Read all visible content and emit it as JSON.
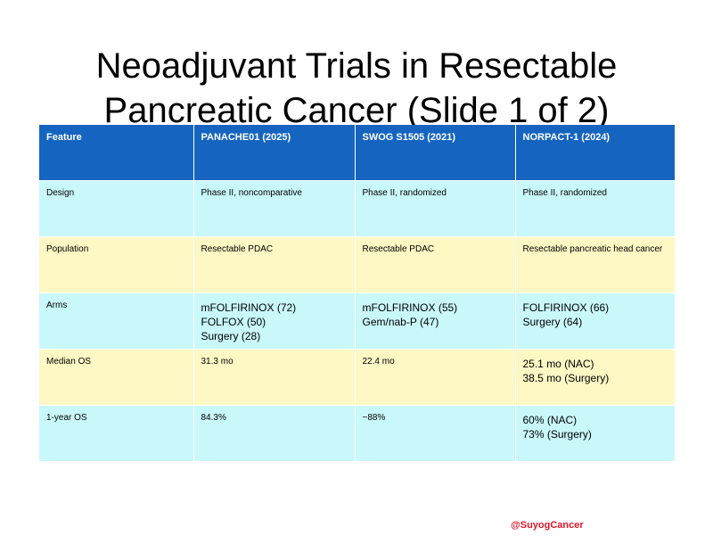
{
  "title": {
    "line1": "Neoadjuvant Trials in Resectable",
    "line2": "Pancreatic Cancer (Slide 1 of 2)"
  },
  "table": {
    "headers": [
      "Feature",
      "PANACHE01 (2025)",
      "SWOG S1505 (2021)",
      "NORPACT-1 (2024)"
    ],
    "rows": [
      {
        "feature": "Design",
        "cells": [
          [
            "Phase II, noncomparative"
          ],
          [
            "Phase II, randomized"
          ],
          [
            "Phase II, randomized"
          ]
        ]
      },
      {
        "feature": "Population",
        "cells": [
          [
            "Resectable PDAC"
          ],
          [
            "Resectable PDAC"
          ],
          [
            "Resectable pancreatic head cancer"
          ]
        ]
      },
      {
        "feature": "Arms",
        "cells": [
          [
            "mFOLFIRINOX (72)",
            "FOLFOX (50)",
            "Surgery (28)"
          ],
          [
            "mFOLFIRINOX (55)",
            "Gem/nab-P (47)"
          ],
          [
            "FOLFIRINOX (66)",
            "Surgery (64)"
          ]
        ]
      },
      {
        "feature": "Median OS",
        "cells": [
          [
            "31.3 mo"
          ],
          [
            "22.4 mo"
          ],
          [
            "25.1 mo (NAC)",
            "38.5 mo (Surgery)"
          ]
        ]
      },
      {
        "feature": "1-year OS",
        "cells": [
          [
            "84.3%"
          ],
          [
            "~88%"
          ],
          [
            "60% (NAC)",
            "73% (Surgery)"
          ]
        ]
      }
    ]
  },
  "footer": {
    "handle": "@SuyogCancer"
  },
  "colors": {
    "header_bg": "#1565c0",
    "row_cyan": "#c9f8fb",
    "row_yellow": "#fdf8c4",
    "handle": "#e0162b"
  }
}
